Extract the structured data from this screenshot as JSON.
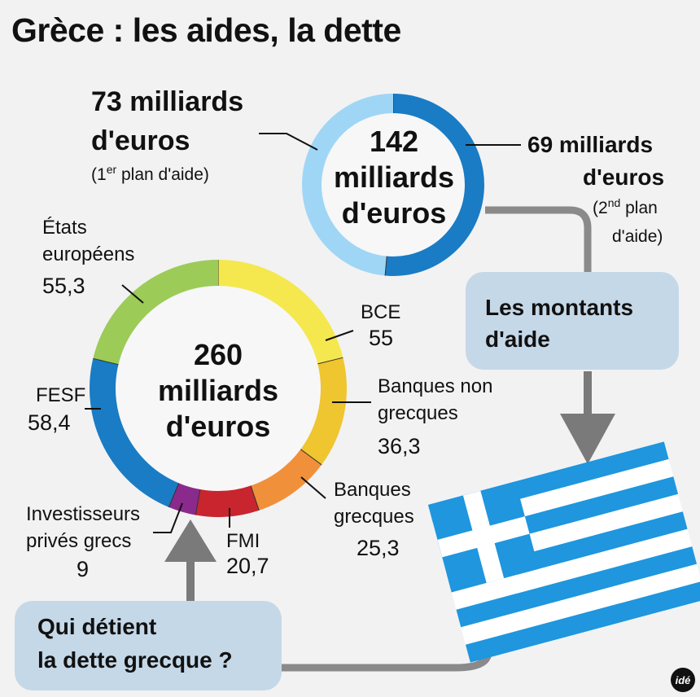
{
  "title": "Grèce : les aides, la dette",
  "chart_data": [
    {
      "type": "pie",
      "name": "Les montants d'aide",
      "center_value": "142",
      "center_label_1": "milliards",
      "center_label_2": "d'euros",
      "unit": "milliards d'euros",
      "slices": [
        {
          "label": "1er plan d'aide",
          "value": 73,
          "color": "#1a7cc4"
        },
        {
          "label": "2nd plan d'aide",
          "value": 69,
          "color": "#9fd6f5"
        }
      ]
    },
    {
      "type": "pie",
      "name": "Qui détient la dette grecque ?",
      "center_value": "260",
      "center_label_1": "milliards",
      "center_label_2": "d'euros",
      "unit": "milliards d'euros",
      "slices": [
        {
          "label": "BCE",
          "value": 55,
          "display": "55",
          "color": "#f4e84e"
        },
        {
          "label": "Banques non grecques",
          "value": 36.3,
          "display": "36,3",
          "color": "#efc530"
        },
        {
          "label": "Banques grecques",
          "value": 25.3,
          "display": "25,3",
          "color": "#f1903a"
        },
        {
          "label": "FMI",
          "value": 20.7,
          "display": "20,7",
          "color": "#c9252e"
        },
        {
          "label": "Investisseurs privés grecs",
          "value": 9,
          "display": "9",
          "color": "#8a2a8c"
        },
        {
          "label": "FESF",
          "value": 58.4,
          "display": "58,4",
          "color": "#1a7cc4"
        },
        {
          "label": "États européens",
          "value": 55.3,
          "display": "55,3",
          "color": "#9ccb58"
        }
      ]
    }
  ],
  "aid": {
    "first_amount_1": "73 milliards",
    "first_amount_2": "d'euros",
    "first_note_pre": "(1",
    "first_note_sup": "er",
    "first_note_post": " plan d'aide)",
    "second_amount_1": "69 milliards",
    "second_amount_2": "d'euros",
    "second_note_pre": "(2",
    "second_note_sup": "nd",
    "second_note_post": " plan",
    "second_note_line2": "d'aide)"
  },
  "debt_labels": {
    "etats_1": "États",
    "etats_2": "européens",
    "etats_value": "55,3",
    "bce": "BCE",
    "bce_value": "55",
    "bng_1": "Banques non",
    "bng_2": "grecques",
    "bng_value": "36,3",
    "bg_1": "Banques",
    "bg_2": "grecques",
    "bg_value": "25,3",
    "fmi": "FMI",
    "fmi_value": "20,7",
    "ipg_1": "Investisseurs",
    "ipg_2": "privés grecs",
    "ipg_value": "9",
    "fesf": "FESF",
    "fesf_value": "58,4"
  },
  "boxes": {
    "aid_1": "Les montants",
    "aid_2": "d'aide",
    "debt_1": "Qui détient",
    "debt_2": "la dette grecque ?"
  },
  "logo": "idé",
  "flag_colors": {
    "blue": "#1f96de",
    "white": "#ffffff"
  }
}
